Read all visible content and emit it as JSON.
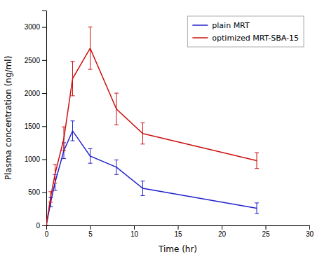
{
  "chart_data": {
    "type": "line",
    "xlabel": "Time (hr)",
    "ylabel": "Plasma concentration (ng/ml)",
    "x": [
      0,
      0.5,
      1.0,
      2.0,
      3.0,
      5.0,
      8.0,
      11.0,
      24.0
    ],
    "series": [
      {
        "name": "plain MRT",
        "color": "#2222CC",
        "values": [
          0,
          350,
          650,
          1130,
          1430,
          1050,
          880,
          560,
          260
        ],
        "errors": [
          0,
          70,
          120,
          120,
          150,
          110,
          110,
          110,
          80
        ]
      },
      {
        "name": "optimized MRT-SBA-15",
        "color": "#CC1111",
        "values": [
          0,
          430,
          780,
          1310,
          2220,
          2680,
          1760,
          1390,
          980
        ],
        "errors": [
          0,
          80,
          140,
          180,
          260,
          320,
          240,
          160,
          120
        ]
      }
    ],
    "xlim": [
      0,
      30
    ],
    "ylim": [
      0,
      3250
    ],
    "xticks": [
      0,
      5,
      10,
      15,
      20,
      25,
      30
    ],
    "yticks": [
      0,
      500,
      1000,
      1500,
      2000,
      2500,
      3000
    ],
    "legend": "upper right"
  }
}
